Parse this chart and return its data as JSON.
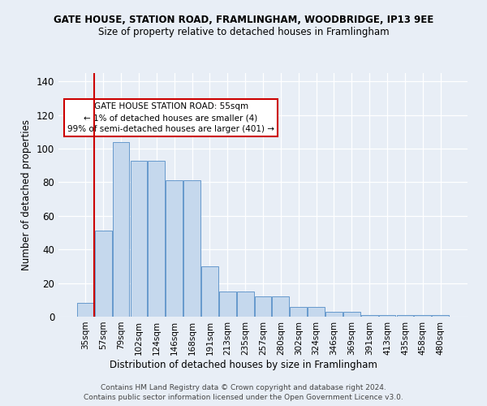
{
  "title": "GATE HOUSE, STATION ROAD, FRAMLINGHAM, WOODBRIDGE, IP13 9EE",
  "subtitle": "Size of property relative to detached houses in Framlingham",
  "xlabel": "Distribution of detached houses by size in Framlingham",
  "ylabel": "Number of detached properties",
  "categories": [
    "35sqm",
    "57sqm",
    "79sqm",
    "102sqm",
    "124sqm",
    "146sqm",
    "168sqm",
    "191sqm",
    "213sqm",
    "235sqm",
    "257sqm",
    "280sqm",
    "302sqm",
    "324sqm",
    "346sqm",
    "369sqm",
    "391sqm",
    "413sqm",
    "435sqm",
    "458sqm",
    "480sqm"
  ],
  "values": [
    8,
    51,
    104,
    93,
    93,
    81,
    81,
    30,
    15,
    15,
    12,
    12,
    6,
    6,
    3,
    3,
    1,
    1,
    1,
    1,
    1
  ],
  "bar_color": "#c5d8ed",
  "bar_edge_color": "#6699cc",
  "vline_color": "#cc0000",
  "vline_x": 0.5,
  "background_color": "#e8eef6",
  "annotation_text": "GATE HOUSE STATION ROAD: 55sqm\n← 1% of detached houses are smaller (4)\n99% of semi-detached houses are larger (401) →",
  "annotation_box_color": "#ffffff",
  "annotation_box_edge": "#cc0000",
  "ylim": [
    0,
    145
  ],
  "yticks": [
    0,
    20,
    40,
    60,
    80,
    100,
    120,
    140
  ],
  "footer1": "Contains HM Land Registry data © Crown copyright and database right 2024.",
  "footer2": "Contains public sector information licensed under the Open Government Licence v3.0."
}
